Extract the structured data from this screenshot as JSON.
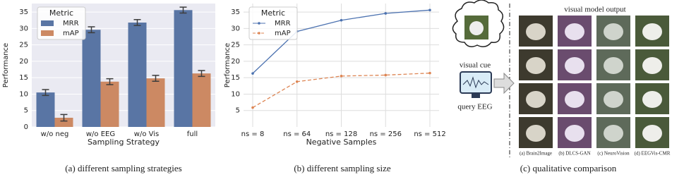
{
  "chart_data": [
    {
      "type": "bar",
      "caption": "(a) different sampling strategies",
      "xlabel": "Sampling Strategy",
      "ylabel": "Performance",
      "legend_title": "Metric",
      "legend": "upper left",
      "grid": true,
      "background": "#eaeaf2",
      "categories": [
        "w/o neg",
        "w/o EEG",
        "w/o Vis",
        "full"
      ],
      "series": [
        {
          "name": "MRR",
          "color": "#5975a4",
          "values": [
            10.5,
            29.6,
            31.8,
            35.6
          ],
          "errors": [
            0.9,
            0.9,
            0.9,
            0.9
          ]
        },
        {
          "name": "mAP",
          "color": "#cc8963",
          "values": [
            2.8,
            13.8,
            14.8,
            16.3
          ],
          "errors": [
            1.0,
            0.9,
            0.9,
            0.9
          ]
        }
      ],
      "ylim": [
        0,
        37.6
      ],
      "yticks": [
        0,
        5,
        10,
        15,
        20,
        25,
        30,
        35
      ]
    },
    {
      "type": "line",
      "caption": "(b) different sampling size",
      "xlabel": "Negative Samples",
      "ylabel": "Performance",
      "legend_title": "Metric",
      "legend": "upper left",
      "grid": true,
      "background": "#ffffff",
      "categories": [
        "ns = 8",
        "ns = 64",
        "ns = 128",
        "ns = 256",
        "ns = 512"
      ],
      "series": [
        {
          "name": "MRR",
          "color": "#4c72b0",
          "values": [
            16.3,
            29.1,
            32.5,
            34.6,
            35.6
          ]
        },
        {
          "name": "mAP",
          "color": "#dd8452",
          "values": [
            5.9,
            13.8,
            15.5,
            15.8,
            16.4
          ],
          "dashed": true
        }
      ],
      "ylim": [
        0,
        37.6
      ],
      "yticks": [
        5,
        10,
        15,
        20,
        25,
        30,
        35
      ]
    }
  ],
  "diagram": {
    "caption": "(c)  qualitative comparison",
    "output_title": "visual model output",
    "cue_label": "visual cue",
    "query_label": "query EEG",
    "methods": [
      "(a) Brain2Image",
      "(b) DLCS-GAN",
      "(c) NeuroVision",
      "(d) EEGVis-CMR"
    ]
  }
}
